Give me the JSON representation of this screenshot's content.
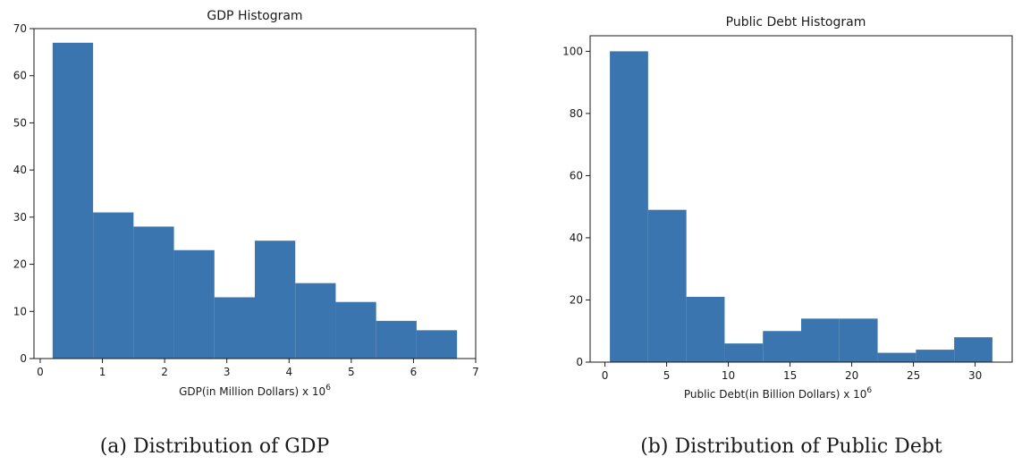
{
  "chart_data": [
    {
      "type": "bar",
      "title": "GDP Histogram",
      "xlabel": "GDP(in Million Dollars) x 10",
      "xlabel_sup": "6",
      "ylabel": "",
      "caption": "(a) Distribution of GDP",
      "bar_color": "#3b75af",
      "bins": [
        {
          "x0": 0.2,
          "x1": 0.85,
          "count": 67
        },
        {
          "x0": 0.85,
          "x1": 1.5,
          "count": 31
        },
        {
          "x0": 1.5,
          "x1": 2.15,
          "count": 28
        },
        {
          "x0": 2.15,
          "x1": 2.8,
          "count": 23
        },
        {
          "x0": 2.8,
          "x1": 3.45,
          "count": 13
        },
        {
          "x0": 3.45,
          "x1": 4.1,
          "count": 25
        },
        {
          "x0": 4.1,
          "x1": 4.75,
          "count": 16
        },
        {
          "x0": 4.75,
          "x1": 5.4,
          "count": 12
        },
        {
          "x0": 5.4,
          "x1": 6.05,
          "count": 8
        },
        {
          "x0": 6.05,
          "x1": 6.7,
          "count": 6
        }
      ],
      "xlim": [
        -0.1,
        7.0
      ],
      "ylim": [
        0,
        70
      ],
      "xticks": [
        0,
        1,
        2,
        3,
        4,
        5,
        6,
        7
      ],
      "yticks": [
        0,
        10,
        20,
        30,
        40,
        50,
        60,
        70
      ],
      "grid": false
    },
    {
      "type": "bar",
      "title": "Public Debt Histogram",
      "xlabel": "Public Debt(in Billion Dollars) x 10",
      "xlabel_sup": "6",
      "ylabel": "",
      "caption": "(b) Distribution of Public Debt",
      "bar_color": "#3b75af",
      "bins": [
        {
          "x0": 0.4,
          "x1": 3.5,
          "count": 100
        },
        {
          "x0": 3.5,
          "x1": 6.6,
          "count": 49
        },
        {
          "x0": 6.6,
          "x1": 9.7,
          "count": 21
        },
        {
          "x0": 9.7,
          "x1": 12.8,
          "count": 6
        },
        {
          "x0": 12.8,
          "x1": 15.9,
          "count": 10
        },
        {
          "x0": 15.9,
          "x1": 19.0,
          "count": 14
        },
        {
          "x0": 19.0,
          "x1": 22.1,
          "count": 14
        },
        {
          "x0": 22.1,
          "x1": 25.2,
          "count": 3
        },
        {
          "x0": 25.2,
          "x1": 28.3,
          "count": 4
        },
        {
          "x0": 28.3,
          "x1": 31.4,
          "count": 8
        }
      ],
      "xlim": [
        -1.2,
        33.0
      ],
      "ylim": [
        0,
        105
      ],
      "xticks": [
        0,
        5,
        10,
        15,
        20,
        25,
        30
      ],
      "yticks": [
        0,
        20,
        40,
        60,
        80,
        100
      ],
      "grid": false
    }
  ]
}
